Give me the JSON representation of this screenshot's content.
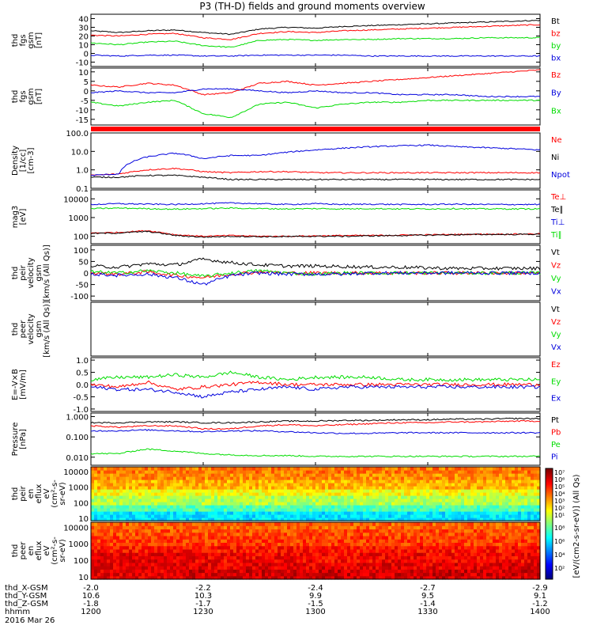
{
  "title": "P3 (TH-D) fields and ground moments overview",
  "colors": {
    "black": "#000000",
    "red": "#ff0000",
    "green": "#00dd00",
    "blue": "#0000dd",
    "axis": "#000000"
  },
  "chart_data": [
    {
      "type": "line",
      "key": "fgs_gsm",
      "ylabel": [
        "thd",
        "fgs",
        "gsm",
        "[nT]"
      ],
      "ylim": [
        -15,
        45
      ],
      "yticks": [
        40,
        30,
        20,
        10,
        0,
        -10
      ],
      "series": [
        {
          "name": "Bt",
          "color": "black",
          "values": [
            26,
            24,
            26,
            27,
            24,
            22,
            28,
            30,
            29,
            31,
            32,
            33,
            34,
            35,
            36,
            37,
            38
          ]
        },
        {
          "name": "bz",
          "color": "red",
          "values": [
            21,
            20,
            22,
            23,
            18,
            16,
            23,
            25,
            24,
            26,
            27,
            28,
            29,
            30,
            31,
            32,
            33
          ]
        },
        {
          "name": "by",
          "color": "green",
          "values": [
            12,
            10,
            13,
            14,
            9,
            7,
            15,
            16,
            15,
            16,
            16,
            17,
            17,
            17,
            18,
            18,
            18
          ]
        },
        {
          "name": "bx",
          "color": "blue",
          "values": [
            -2,
            -3,
            -2,
            -2,
            -3,
            -3,
            -2,
            -2,
            -2,
            -2,
            -3,
            -3,
            -3,
            -3,
            -3,
            -3,
            -3
          ]
        }
      ]
    },
    {
      "type": "line",
      "key": "fgs_gse",
      "ylabel": [
        "thd",
        "fgs",
        "gsm",
        "[nT]"
      ],
      "ylim": [
        -18,
        12
      ],
      "yticks": [
        10,
        5,
        0,
        -5,
        -10,
        -15
      ],
      "series": [
        {
          "name": "Bz",
          "color": "red",
          "values": [
            3,
            2,
            4,
            3,
            -2,
            -1,
            4,
            5,
            3,
            4,
            5,
            6,
            7,
            8,
            9,
            10,
            11
          ]
        },
        {
          "name": "By",
          "color": "blue",
          "values": [
            -1,
            0,
            -1,
            -1,
            1,
            1,
            0,
            -1,
            0,
            -1,
            -1,
            -2,
            -2,
            -2,
            -3,
            -3,
            -3
          ]
        },
        {
          "name": "Bx",
          "color": "green",
          "values": [
            -6,
            -8,
            -6,
            -5,
            -12,
            -14,
            -7,
            -6,
            -9,
            -7,
            -6,
            -6,
            -5,
            -5,
            -5,
            -5,
            -5
          ]
        }
      ]
    },
    {
      "type": "bar",
      "key": "red_bar",
      "ylabel": [],
      "values": [
        1
      ]
    },
    {
      "type": "line",
      "key": "density",
      "ylabel": [
        "Density",
        "[1/cc]",
        "[cm-3]"
      ],
      "scale": "log",
      "ylim": [
        0.1,
        100
      ],
      "yticks": [
        100.0,
        10.0,
        1.0,
        0.1
      ],
      "yticklabels": [
        "100.0",
        "10.0",
        "1.0",
        "0.1"
      ],
      "series": [
        {
          "name": "Ne",
          "color": "red",
          "values": [
            0.5,
            0.6,
            1.0,
            1.2,
            0.8,
            0.7,
            0.8,
            0.8,
            0.7,
            0.7,
            0.7,
            0.7,
            0.7,
            0.7,
            0.7,
            0.7,
            0.7
          ]
        },
        {
          "name": "Ni",
          "color": "black",
          "values": [
            0.4,
            0.4,
            0.5,
            0.5,
            0.4,
            0.3,
            0.3,
            0.3,
            0.3,
            0.3,
            0.3,
            0.3,
            0.3,
            0.3,
            0.3,
            0.3,
            0.3
          ]
        },
        {
          "name": "Npot",
          "color": "blue",
          "values": [
            0.5,
            0.6,
            5,
            8,
            4,
            6,
            6,
            9,
            12,
            15,
            18,
            20,
            22,
            18,
            16,
            14,
            12
          ]
        }
      ]
    },
    {
      "type": "line",
      "key": "temp",
      "ylabel": [
        "mag3",
        "[eV]"
      ],
      "scale": "log",
      "ylim": [
        40,
        30000
      ],
      "yticks": [
        10000,
        1000,
        100
      ],
      "yticklabels": [
        "10000",
        "1000",
        "100"
      ],
      "series": [
        {
          "name": "Te⊥",
          "color": "red",
          "values": [
            150,
            160,
            200,
            120,
            100,
            110,
            100,
            100,
            105,
            110,
            110,
            115,
            120,
            125,
            130,
            130,
            135
          ]
        },
        {
          "name": "Te∥",
          "color": "black",
          "values": [
            140,
            150,
            180,
            110,
            90,
            100,
            95,
            95,
            100,
            100,
            105,
            110,
            115,
            120,
            125,
            125,
            130
          ]
        },
        {
          "name": "Ti⊥",
          "color": "blue",
          "values": [
            5000,
            5500,
            5200,
            5000,
            5500,
            6000,
            5500,
            5000,
            5500,
            5000,
            5200,
            5000,
            5000,
            5200,
            5000,
            5000,
            5000
          ]
        },
        {
          "name": "Ti∥",
          "color": "green",
          "values": [
            3000,
            3200,
            3000,
            2800,
            3000,
            3200,
            3000,
            2900,
            3000,
            2900,
            3000,
            2900,
            2900,
            3000,
            2900,
            2900,
            2900
          ]
        }
      ]
    },
    {
      "type": "line",
      "key": "peir_vel",
      "ylabel": [
        "thd",
        "peir",
        "velocity",
        "gsm",
        "[km/s (All Qs)]"
      ],
      "ylim": [
        -120,
        120
      ],
      "yticks": [
        100,
        50,
        0,
        -50,
        -100
      ],
      "series": [
        {
          "name": "Vt",
          "color": "black",
          "values": [
            30,
            25,
            40,
            35,
            60,
            45,
            35,
            30,
            30,
            28,
            25,
            25,
            22,
            20,
            20,
            20,
            20
          ]
        },
        {
          "name": "Vz",
          "color": "red",
          "values": [
            0,
            -5,
            5,
            -10,
            -20,
            -5,
            5,
            0,
            0,
            0,
            0,
            0,
            0,
            0,
            0,
            0,
            0
          ]
        },
        {
          "name": "Vy",
          "color": "green",
          "values": [
            5,
            0,
            10,
            0,
            -15,
            0,
            10,
            0,
            -5,
            0,
            0,
            0,
            0,
            0,
            0,
            0,
            0
          ]
        },
        {
          "name": "Vx",
          "color": "blue",
          "values": [
            -5,
            -10,
            -5,
            -20,
            -50,
            -10,
            0,
            -5,
            -5,
            -5,
            0,
            0,
            0,
            0,
            0,
            0,
            0
          ]
        }
      ]
    },
    {
      "type": "line",
      "key": "peer_vel",
      "ylabel": [
        "thd",
        "peer",
        "velocity",
        "gsm",
        "[km/s (All Qs)]"
      ],
      "ylim": [
        -120,
        120
      ],
      "yticks": [],
      "series": [
        {
          "name": "Vt",
          "color": "black",
          "values": []
        },
        {
          "name": "Vz",
          "color": "red",
          "values": []
        },
        {
          "name": "Vy",
          "color": "green",
          "values": []
        },
        {
          "name": "Vx",
          "color": "blue",
          "values": []
        }
      ]
    },
    {
      "type": "line",
      "key": "efield",
      "ylabel": [
        "E=-V×B",
        "[mV/m]"
      ],
      "ylim": [
        -1.1,
        1.1
      ],
      "yticks": [
        1.0,
        0.5,
        0.0,
        -0.5,
        -1.0
      ],
      "yticklabels": [
        "1.0",
        "0.5",
        "0.0",
        "-0.5",
        "-1.0"
      ],
      "series": [
        {
          "name": "Ez",
          "color": "red",
          "values": [
            0,
            -0.1,
            0.1,
            -0.2,
            -0.1,
            0,
            0.1,
            0,
            0,
            0,
            0,
            0,
            0,
            0,
            0,
            0,
            0
          ]
        },
        {
          "name": "Ey",
          "color": "green",
          "values": [
            0.2,
            0.3,
            0.3,
            0.4,
            0.3,
            0.5,
            0.3,
            0.2,
            0.3,
            0.3,
            0.3,
            0.2,
            0.2,
            0.2,
            0.2,
            0.2,
            0.2
          ]
        },
        {
          "name": "Ex",
          "color": "blue",
          "values": [
            -0.1,
            -0.2,
            -0.2,
            -0.3,
            -0.5,
            -0.3,
            -0.2,
            -0.1,
            -0.2,
            -0.1,
            -0.1,
            -0.1,
            -0.1,
            -0.1,
            -0.1,
            -0.1,
            -0.1
          ]
        }
      ]
    },
    {
      "type": "line",
      "key": "pressure",
      "ylabel": [
        "Pressure",
        "[nPa]"
      ],
      "scale": "log",
      "ylim": [
        0.004,
        1.5
      ],
      "yticks": [
        1.0,
        0.1,
        0.01
      ],
      "yticklabels": [
        "1.000",
        "0.100",
        "0.010"
      ],
      "series": [
        {
          "name": "Pt",
          "color": "black",
          "values": [
            0.5,
            0.5,
            0.55,
            0.55,
            0.5,
            0.5,
            0.55,
            0.6,
            0.6,
            0.65,
            0.65,
            0.7,
            0.7,
            0.75,
            0.75,
            0.8,
            0.8
          ]
        },
        {
          "name": "Pb",
          "color": "red",
          "values": [
            0.35,
            0.3,
            0.35,
            0.35,
            0.25,
            0.25,
            0.35,
            0.4,
            0.35,
            0.4,
            0.45,
            0.5,
            0.5,
            0.55,
            0.55,
            0.6,
            0.6
          ]
        },
        {
          "name": "Pe",
          "color": "green",
          "values": [
            0.015,
            0.015,
            0.025,
            0.02,
            0.015,
            0.013,
            0.012,
            0.012,
            0.011,
            0.011,
            0.011,
            0.011,
            0.011,
            0.011,
            0.011,
            0.011,
            0.011
          ]
        },
        {
          "name": "Pi",
          "color": "blue",
          "values": [
            0.2,
            0.2,
            0.22,
            0.2,
            0.18,
            0.2,
            0.2,
            0.18,
            0.16,
            0.15,
            0.15,
            0.16,
            0.16,
            0.16,
            0.16,
            0.16,
            0.16
          ]
        }
      ]
    },
    {
      "type": "heatmap",
      "key": "peir_spec",
      "ylabel": [
        "thd",
        "peir",
        "en",
        "eflux",
        "eV",
        "(cm²-s-",
        "sr-eV)"
      ],
      "scale": "log",
      "ylim": [
        7,
        20000
      ],
      "yticks": [
        10000,
        1000,
        100,
        10
      ],
      "yticklabels": [
        "10000",
        "1000",
        "100",
        "10"
      ],
      "bands_low_to_high": [
        0.35,
        0.45,
        0.55,
        0.62,
        0.7,
        0.74,
        0.76
      ]
    },
    {
      "type": "heatmap",
      "key": "peer_spec",
      "ylabel": [
        "thd",
        "peer",
        "en",
        "eflux",
        "eV",
        "(cm²-s-",
        "sr-eV)"
      ],
      "scale": "log",
      "ylim": [
        7,
        20000
      ],
      "yticks": [
        10000,
        1000,
        100,
        10
      ],
      "yticklabels": [
        "10000",
        "1000",
        "100",
        "10"
      ],
      "bands_low_to_high": [
        0.92,
        0.9,
        0.88,
        0.86,
        0.82,
        0.8,
        0.78
      ]
    }
  ],
  "colorbar": {
    "ticks_top": [
      "10⁷",
      "10⁶",
      "10⁵",
      "10⁴",
      "10³",
      "10²",
      "10¹"
    ],
    "ticks_bottom": [
      "10⁸",
      "10⁶",
      "10⁴",
      "10²"
    ],
    "label": "[eV/(cm2-s-sr-eV)] (All Qs)"
  },
  "xaxis": {
    "ticks": [
      "1200",
      "1230",
      "1300",
      "1330",
      "1400"
    ],
    "rows": [
      {
        "label": "thd_X-GSM",
        "values": [
          "-2.0",
          "-2.2",
          "-2.4",
          "-2.7",
          "-2.9"
        ]
      },
      {
        "label": "thd_Y-GSM",
        "values": [
          "10.6",
          "10.3",
          "9.9",
          "9.5",
          "9.1"
        ]
      },
      {
        "label": "thd_Z-GSM",
        "values": [
          "-1.8",
          "-1.7",
          "-1.5",
          "-1.4",
          "-1.2"
        ]
      },
      {
        "label": "hhmm",
        "values": [
          "1200",
          "1230",
          "1300",
          "1330",
          "1400"
        ]
      }
    ],
    "date": "2016 Mar 26"
  }
}
